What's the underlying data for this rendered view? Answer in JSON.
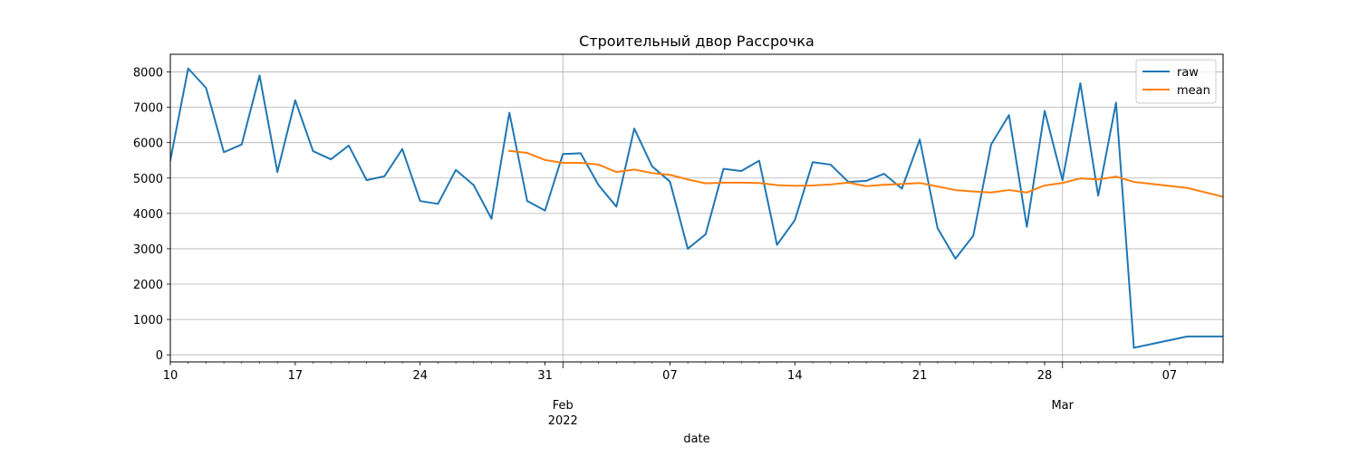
{
  "chart_data": {
    "type": "line",
    "title": "Строительный двор Рассрочка",
    "xlabel": "date",
    "ylabel": "",
    "xlim": [
      "2022-01-10",
      "2022-03-10"
    ],
    "ylim": [
      -200,
      8500
    ],
    "grid": true,
    "legend_position": "top-right",
    "x_tick_labels": [
      {
        "date": "2022-01-10",
        "label": "10"
      },
      {
        "date": "2022-01-17",
        "label": "17"
      },
      {
        "date": "2022-01-24",
        "label": "24"
      },
      {
        "date": "2022-01-31",
        "label": "31"
      },
      {
        "date": "2022-02-07",
        "label": "07"
      },
      {
        "date": "2022-02-14",
        "label": "14"
      },
      {
        "date": "2022-02-21",
        "label": "21"
      },
      {
        "date": "2022-02-28",
        "label": "28"
      },
      {
        "date": "2022-03-07",
        "label": "07"
      }
    ],
    "x_major_labels": [
      {
        "date": "2022-02-01",
        "label": "Feb",
        "label2": "2022"
      },
      {
        "date": "2022-03-01",
        "label": "Mar",
        "label2": ""
      }
    ],
    "y_ticks": [
      0,
      1000,
      2000,
      3000,
      4000,
      5000,
      6000,
      7000,
      8000
    ],
    "series": [
      {
        "name": "raw",
        "color": "#1f77b4",
        "points": [
          [
            "2022-01-10",
            5500
          ],
          [
            "2022-01-11",
            8100
          ],
          [
            "2022-01-12",
            7550
          ],
          [
            "2022-01-13",
            5730
          ],
          [
            "2022-01-14",
            5950
          ],
          [
            "2022-01-15",
            7900
          ],
          [
            "2022-01-16",
            5170
          ],
          [
            "2022-01-17",
            7200
          ],
          [
            "2022-01-18",
            5760
          ],
          [
            "2022-01-19",
            5530
          ],
          [
            "2022-01-20",
            5920
          ],
          [
            "2022-01-21",
            4940
          ],
          [
            "2022-01-22",
            5050
          ],
          [
            "2022-01-23",
            5820
          ],
          [
            "2022-01-24",
            4350
          ],
          [
            "2022-01-25",
            4270
          ],
          [
            "2022-01-26",
            5230
          ],
          [
            "2022-01-27",
            4800
          ],
          [
            "2022-01-28",
            3850
          ],
          [
            "2022-01-29",
            6850
          ],
          [
            "2022-01-30",
            4350
          ],
          [
            "2022-01-31",
            4080
          ],
          [
            "2022-02-01",
            5680
          ],
          [
            "2022-02-02",
            5700
          ],
          [
            "2022-02-03",
            4800
          ],
          [
            "2022-02-04",
            4190
          ],
          [
            "2022-02-05",
            6400
          ],
          [
            "2022-02-06",
            5330
          ],
          [
            "2022-02-07",
            4900
          ],
          [
            "2022-02-08",
            3000
          ],
          [
            "2022-02-09",
            3410
          ],
          [
            "2022-02-10",
            5260
          ],
          [
            "2022-02-11",
            5200
          ],
          [
            "2022-02-12",
            5490
          ],
          [
            "2022-02-13",
            3110
          ],
          [
            "2022-02-14",
            3810
          ],
          [
            "2022-02-15",
            5450
          ],
          [
            "2022-02-16",
            5380
          ],
          [
            "2022-02-17",
            4890
          ],
          [
            "2022-02-18",
            4920
          ],
          [
            "2022-02-19",
            5120
          ],
          [
            "2022-02-20",
            4700
          ],
          [
            "2022-02-21",
            6090
          ],
          [
            "2022-02-22",
            3580
          ],
          [
            "2022-02-23",
            2720
          ],
          [
            "2022-02-24",
            3370
          ],
          [
            "2022-02-25",
            5950
          ],
          [
            "2022-02-26",
            6780
          ],
          [
            "2022-02-27",
            3620
          ],
          [
            "2022-02-28",
            6900
          ],
          [
            "2022-03-01",
            4940
          ],
          [
            "2022-03-02",
            7680
          ],
          [
            "2022-03-03",
            4500
          ],
          [
            "2022-03-04",
            7130
          ],
          [
            "2022-03-05",
            200
          ],
          [
            "2022-03-08",
            520
          ],
          [
            "2022-03-10",
            520
          ]
        ]
      },
      {
        "name": "mean",
        "color": "#ff7f0e",
        "points": [
          [
            "2022-01-29",
            5770
          ],
          [
            "2022-01-30",
            5710
          ],
          [
            "2022-01-31",
            5510
          ],
          [
            "2022-02-01",
            5430
          ],
          [
            "2022-02-02",
            5430
          ],
          [
            "2022-02-03",
            5380
          ],
          [
            "2022-02-04",
            5170
          ],
          [
            "2022-02-05",
            5240
          ],
          [
            "2022-02-06",
            5140
          ],
          [
            "2022-02-07",
            5090
          ],
          [
            "2022-02-08",
            4960
          ],
          [
            "2022-02-09",
            4850
          ],
          [
            "2022-02-10",
            4870
          ],
          [
            "2022-02-11",
            4870
          ],
          [
            "2022-02-12",
            4860
          ],
          [
            "2022-02-13",
            4800
          ],
          [
            "2022-02-14",
            4780
          ],
          [
            "2022-02-15",
            4790
          ],
          [
            "2022-02-16",
            4820
          ],
          [
            "2022-02-17",
            4870
          ],
          [
            "2022-02-18",
            4770
          ],
          [
            "2022-02-19",
            4810
          ],
          [
            "2022-02-20",
            4830
          ],
          [
            "2022-02-21",
            4860
          ],
          [
            "2022-02-22",
            4760
          ],
          [
            "2022-02-23",
            4660
          ],
          [
            "2022-02-24",
            4620
          ],
          [
            "2022-02-25",
            4590
          ],
          [
            "2022-02-26",
            4660
          ],
          [
            "2022-02-27",
            4590
          ],
          [
            "2022-02-28",
            4790
          ],
          [
            "2022-03-01",
            4860
          ],
          [
            "2022-03-02",
            4990
          ],
          [
            "2022-03-03",
            4960
          ],
          [
            "2022-03-04",
            5040
          ],
          [
            "2022-03-05",
            4890
          ],
          [
            "2022-03-08",
            4720
          ],
          [
            "2022-03-10",
            4470
          ]
        ]
      }
    ]
  }
}
